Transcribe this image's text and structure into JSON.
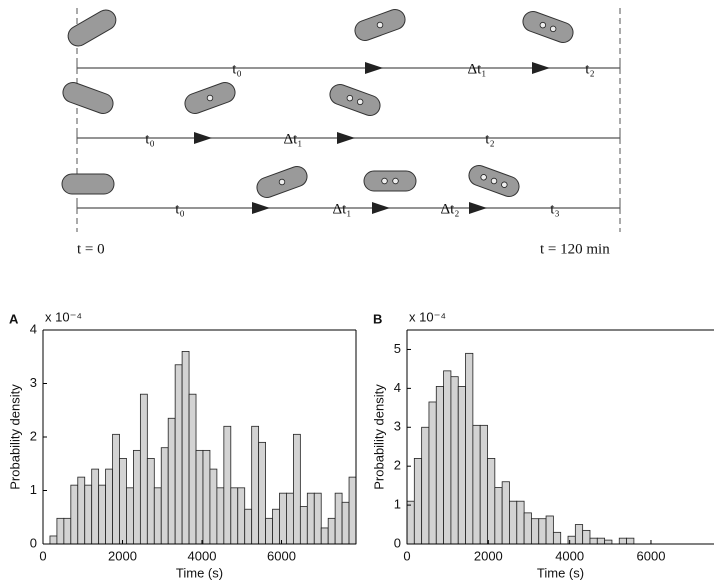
{
  "diagram": {
    "rows": [
      {
        "labels": [
          "t₀",
          "Δt₁",
          "t₂"
        ]
      },
      {
        "labels": [
          "t₀",
          "Δt₁",
          "t₂"
        ]
      },
      {
        "labels": [
          "t₀",
          "Δt₁",
          "Δt₂",
          "t₃"
        ]
      }
    ],
    "start_label": "t = 0",
    "end_label": "t = 120 min"
  },
  "chart_data": [
    {
      "type": "histogram",
      "panel": "A",
      "xlabel": "Time (s)",
      "ylabel": "Probability density",
      "y_multiplier": "x 10⁻⁴",
      "bins": [
        0,
        175,
        350,
        525,
        700,
        875,
        1050,
        1225,
        1400,
        1575,
        1750,
        1925,
        2100,
        2275,
        2450,
        2625,
        2800,
        2975,
        3150,
        3325,
        3500,
        3675,
        3850,
        4025,
        4200,
        4375,
        4550,
        4725,
        4900,
        5075,
        5250,
        5425,
        5600,
        5775,
        5950,
        6125,
        6300,
        6475,
        6650,
        6825,
        7000,
        7175,
        7350,
        7525,
        7700,
        7875
      ],
      "values": [
        0,
        0.15,
        0.48,
        0.48,
        1.1,
        1.25,
        1.1,
        1.4,
        1.1,
        1.4,
        2.05,
        1.6,
        1.05,
        1.75,
        2.8,
        1.6,
        1.05,
        1.8,
        2.35,
        3.35,
        3.6,
        2.8,
        1.75,
        1.75,
        1.4,
        1.05,
        2.2,
        1.05,
        1.05,
        0.65,
        2.2,
        1.9,
        0.48,
        0.65,
        0.95,
        0.95,
        2.05,
        0.7,
        0.95,
        0.95,
        0.3,
        0.48,
        0.95,
        0.78,
        1.25
      ],
      "color": "#d3d3d3",
      "xlim": [
        0,
        7875
      ],
      "ylim": [
        0,
        4
      ],
      "xticks": [
        0,
        2000,
        4000,
        6000
      ],
      "yticks": [
        0,
        1,
        2,
        3,
        4
      ]
    },
    {
      "type": "histogram",
      "panel": "B",
      "xlabel": "Time (s)",
      "ylabel": "Probability density",
      "y_multiplier": "x 10⁻⁴",
      "bins": [
        0,
        180,
        360,
        540,
        720,
        900,
        1080,
        1260,
        1440,
        1620,
        1800,
        1980,
        2160,
        2340,
        2520,
        2700,
        2880,
        3060,
        3240,
        3420,
        3600,
        3780,
        3960,
        4140,
        4320,
        4500,
        4680,
        4860,
        5040,
        5220,
        5400,
        5580
      ],
      "values": [
        1.1,
        2.2,
        3.0,
        3.65,
        4.05,
        4.45,
        4.3,
        4.05,
        4.9,
        3.05,
        3.05,
        2.2,
        1.45,
        1.6,
        1.1,
        1.1,
        0.8,
        0.65,
        0.65,
        0.72,
        0.3,
        0,
        0.2,
        0.5,
        0.35,
        0.15,
        0.15,
        0.1,
        0,
        0.15,
        0.15
      ],
      "color": "#d3d3d3",
      "xlim": [
        0,
        7550
      ],
      "ylim": [
        0,
        5.5
      ],
      "xticks": [
        0,
        2000,
        4000,
        6000
      ],
      "yticks": [
        0,
        1,
        2,
        3,
        4,
        5
      ]
    }
  ]
}
